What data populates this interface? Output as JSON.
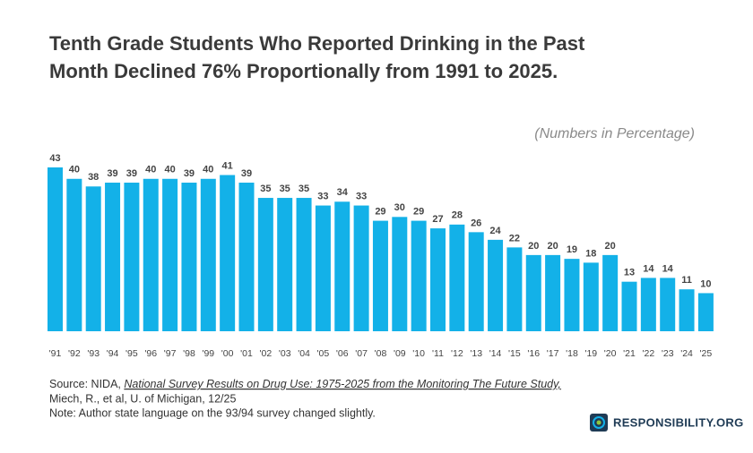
{
  "chart_data": {
    "type": "bar",
    "title_lines": [
      "Tenth Grade Students Who Reported Drinking in the Past",
      "Month Declined 76% Proportionally from 1991 to 2025."
    ],
    "subtitle": "(Numbers in Percentage)",
    "categories": [
      "'91",
      "'92",
      "'93",
      "'94",
      "'95",
      "'96",
      "'97",
      "'98",
      "'99",
      "'00",
      "'01",
      "'02",
      "'03",
      "'04",
      "'05",
      "'06",
      "'07",
      "'08",
      "'09",
      "'10",
      "'11",
      "'12",
      "'13",
      "'14",
      "'15",
      "'16",
      "'17",
      "'18",
      "'19",
      "'20",
      "'21",
      "'22",
      "'23",
      "'24",
      "'25"
    ],
    "values": [
      43,
      40,
      38,
      39,
      39,
      40,
      40,
      39,
      40,
      41,
      39,
      35,
      35,
      35,
      33,
      34,
      33,
      29,
      30,
      29,
      27,
      28,
      26,
      24,
      22,
      20,
      20,
      19,
      18,
      20,
      13,
      14,
      14,
      11,
      10
    ],
    "color": "#13b1e8",
    "source": {
      "prefix": "Source: NIDA, ",
      "title": "National Survey Results on Drug Use: 1975-2025 from the Monitoring The Future Study,",
      "authors": "Miech, R., et al, U. of Michigan, 12/25"
    },
    "note": "Note: Author state language on the 93/94 survey changed slightly.",
    "logo": "RESPONSIBILITY.ORG"
  }
}
